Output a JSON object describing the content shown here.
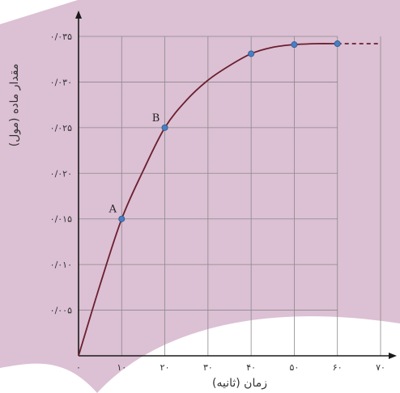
{
  "chart_data": {
    "type": "line",
    "xlabel": "زمان (ثانیه)",
    "ylabel": "مقدار ماده (مول)",
    "xlim": [
      0,
      70
    ],
    "ylim": [
      0,
      0.035
    ],
    "grid": true,
    "x_ticks": [
      0,
      10,
      20,
      30,
      40,
      50,
      60,
      70
    ],
    "y_ticks": [
      0.005,
      0.01,
      0.015,
      0.02,
      0.025,
      0.03,
      0.035
    ],
    "x_tick_labels": [
      "۰",
      "۱۰",
      "۲۰",
      "۳۰",
      "۴۰",
      "۵۰",
      "۶۰",
      "۷۰"
    ],
    "y_tick_labels": [
      "۰/۰۰۵",
      "۰/۰۱۰",
      "۰/۰۱۵",
      "۰/۰۲۰",
      "۰/۰۲۵",
      "۰/۰۳۰",
      "۰/۰۳۵"
    ],
    "series": [
      {
        "curve": [
          [
            0,
            0
          ],
          [
            5,
            0.0078
          ],
          [
            10,
            0.015
          ],
          [
            15,
            0.0203
          ],
          [
            20,
            0.025
          ],
          [
            25,
            0.028
          ],
          [
            30,
            0.0302
          ],
          [
            35,
            0.0318
          ],
          [
            40,
            0.0331
          ],
          [
            45,
            0.0338
          ],
          [
            50,
            0.0341
          ],
          [
            55,
            0.0342
          ],
          [
            60,
            0.0342
          ]
        ],
        "dashed_extension": [
          [
            60,
            0.0342
          ],
          [
            70,
            0.0342
          ]
        ],
        "marked_points": [
          [
            10,
            0.015
          ],
          [
            20,
            0.025
          ],
          [
            40,
            0.0331
          ],
          [
            50,
            0.0341
          ],
          [
            60,
            0.0342
          ]
        ],
        "color": "#6b1f2e"
      }
    ],
    "annotations": [
      {
        "text": "A",
        "x": 10,
        "y": 0.015
      },
      {
        "text": "B",
        "x": 20,
        "y": 0.025
      }
    ],
    "colors": {
      "background": "#dcc0d4",
      "grid": "#8a8a8a",
      "curve": "#6b1f2e",
      "point": "#4a7fc0"
    }
  }
}
